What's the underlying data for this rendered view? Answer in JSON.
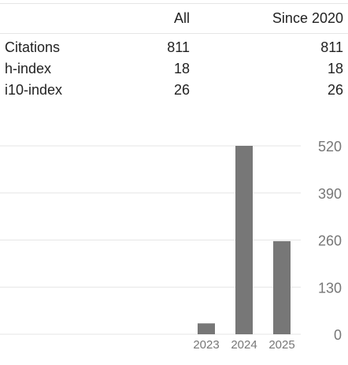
{
  "citations_table": {
    "headers": [
      "",
      "All",
      "Since 2020"
    ],
    "rows": [
      {
        "label": "Citations",
        "all": "811",
        "since": "811"
      },
      {
        "label": "h-index",
        "all": "18",
        "since": "18"
      },
      {
        "label": "i10-index",
        "all": "26",
        "since": "26"
      }
    ]
  },
  "chart_data": {
    "type": "bar",
    "title": "",
    "xlabel": "",
    "ylabel": "",
    "categories": [
      "2023",
      "2024",
      "2025"
    ],
    "values": [
      30,
      520,
      257
    ],
    "y_ticks": [
      "520",
      "390",
      "260",
      "130",
      "0"
    ],
    "ylim": [
      0,
      520
    ],
    "grid": true,
    "axis_position": "right",
    "colors": {
      "bar": "#777777",
      "grid": "#e6e6e6",
      "tick_text": "#777777"
    }
  }
}
